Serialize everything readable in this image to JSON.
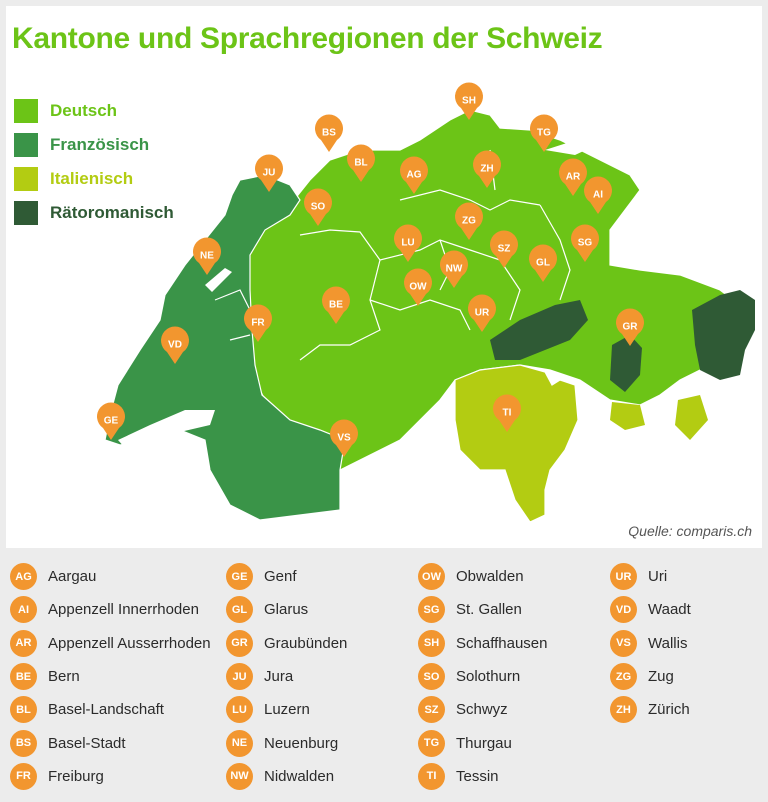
{
  "title": "Kantone und Sprachregionen der Schweiz",
  "legend": [
    {
      "label": "Deutsch",
      "color": "#6cc417",
      "text_color": "#6cc417"
    },
    {
      "label": "Französisch",
      "color": "#3a9448",
      "text_color": "#3a9448"
    },
    {
      "label": "Italienisch",
      "color": "#b3cc12",
      "text_color": "#b3cc12"
    },
    {
      "label": "Rätoromanisch",
      "color": "#2f5a35",
      "text_color": "#2f5a35"
    }
  ],
  "source": "Quelle: comparis.ch",
  "pins": [
    "SH",
    "BS",
    "TG",
    "JU",
    "BL",
    "AG",
    "ZH",
    "AR",
    "AI",
    "SO",
    "NE",
    "ZG",
    "LU",
    "SZ",
    "SG",
    "NW",
    "GL",
    "BE",
    "OW",
    "FR",
    "UR",
    "GR",
    "VD",
    "TI",
    "GE",
    "VS"
  ],
  "cantons": [
    [
      {
        "code": "AG",
        "name": "Aargau"
      },
      {
        "code": "AI",
        "name": "Appenzell Innerrhoden"
      },
      {
        "code": "AR",
        "name": "Appenzell Ausserrhoden"
      },
      {
        "code": "BE",
        "name": "Bern"
      },
      {
        "code": "BL",
        "name": "Basel-Landschaft"
      },
      {
        "code": "BS",
        "name": "Basel-Stadt"
      },
      {
        "code": "FR",
        "name": "Freiburg"
      }
    ],
    [
      {
        "code": "GE",
        "name": "Genf"
      },
      {
        "code": "GL",
        "name": "Glarus"
      },
      {
        "code": "GR",
        "name": "Graubünden"
      },
      {
        "code": "JU",
        "name": "Jura"
      },
      {
        "code": "LU",
        "name": "Luzern"
      },
      {
        "code": "NE",
        "name": "Neuenburg"
      },
      {
        "code": "NW",
        "name": "Nidwalden"
      }
    ],
    [
      {
        "code": "OW",
        "name": "Obwalden"
      },
      {
        "code": "SG",
        "name": "St. Gallen"
      },
      {
        "code": "SH",
        "name": "Schaffhausen"
      },
      {
        "code": "SO",
        "name": "Solothurn"
      },
      {
        "code": "SZ",
        "name": "Schwyz"
      },
      {
        "code": "TG",
        "name": "Thurgau"
      },
      {
        "code": "TI",
        "name": "Tessin"
      }
    ],
    [
      {
        "code": "UR",
        "name": "Uri"
      },
      {
        "code": "VD",
        "name": "Waadt"
      },
      {
        "code": "VS",
        "name": "Wallis"
      },
      {
        "code": "ZG",
        "name": "Zug"
      },
      {
        "code": "ZH",
        "name": "Zürich"
      }
    ]
  ]
}
